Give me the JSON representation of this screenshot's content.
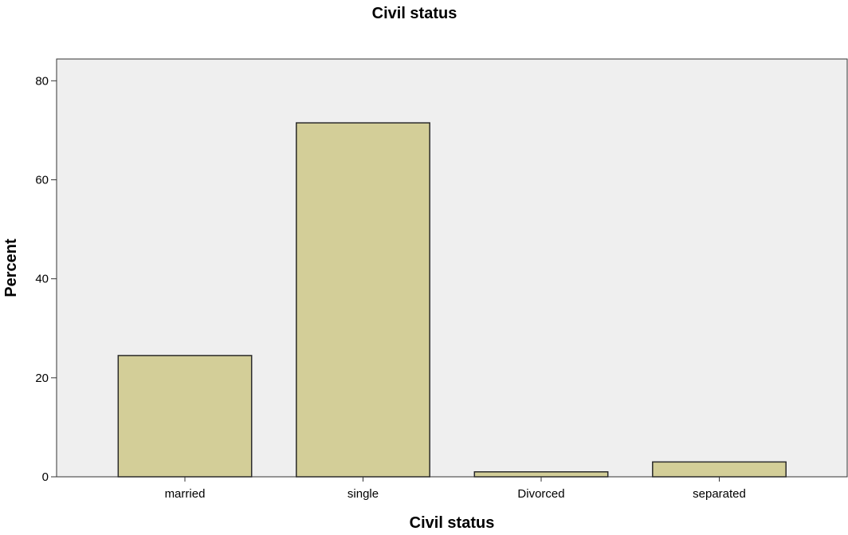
{
  "chart_data": {
    "type": "bar",
    "title": "Civil status",
    "xlabel": "Civil status",
    "ylabel": "Percent",
    "categories": [
      "married",
      "single",
      "Divorced",
      "separated"
    ],
    "values": [
      24.5,
      71.5,
      1.0,
      3.0
    ],
    "ylim": [
      0,
      84.4
    ],
    "yticks": [
      0,
      20,
      40,
      60,
      80
    ],
    "ytick_labels": [
      "0",
      "20",
      "40",
      "60",
      "80"
    ],
    "grid": false,
    "legend": "none",
    "colors": {
      "bar_fill": "#d3ce98",
      "bar_stroke": "#2b2b2b",
      "plot_background": "#efefef",
      "axis": "#333333"
    }
  }
}
